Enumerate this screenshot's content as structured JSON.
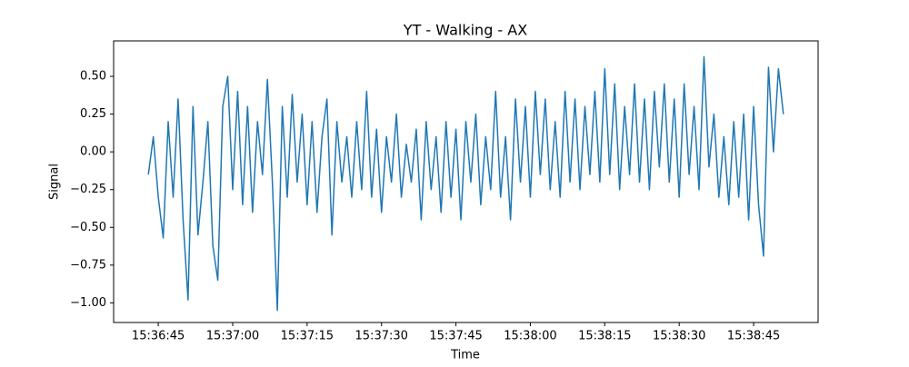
{
  "chart_data": {
    "type": "line",
    "title": "YT - Walking - AX",
    "xlabel": "Time",
    "ylabel": "Signal",
    "color": "#1f77b4",
    "x": [
      "15:36:43",
      "15:36:44",
      "15:36:45",
      "15:36:46",
      "15:36:47",
      "15:36:48",
      "15:36:49",
      "15:36:50",
      "15:36:51",
      "15:36:52",
      "15:36:53",
      "15:36:54",
      "15:36:55",
      "15:36:56",
      "15:36:57",
      "15:36:58",
      "15:36:59",
      "15:37:00",
      "15:37:01",
      "15:37:02",
      "15:37:03",
      "15:37:04",
      "15:37:05",
      "15:37:06",
      "15:37:07",
      "15:37:08",
      "15:37:09",
      "15:37:10",
      "15:37:11",
      "15:37:12",
      "15:37:13",
      "15:37:14",
      "15:37:15",
      "15:37:16",
      "15:37:17",
      "15:37:18",
      "15:37:19",
      "15:37:20",
      "15:37:21",
      "15:37:22",
      "15:37:23",
      "15:37:24",
      "15:37:25",
      "15:37:26",
      "15:37:27",
      "15:37:28",
      "15:37:29",
      "15:37:30",
      "15:37:31",
      "15:37:32",
      "15:37:33",
      "15:37:34",
      "15:37:35",
      "15:37:36",
      "15:37:37",
      "15:37:38",
      "15:37:39",
      "15:37:40",
      "15:37:41",
      "15:37:42",
      "15:37:43",
      "15:37:44",
      "15:37:45",
      "15:37:46",
      "15:37:47",
      "15:37:48",
      "15:37:49",
      "15:37:50",
      "15:37:51",
      "15:37:52",
      "15:37:53",
      "15:37:54",
      "15:37:55",
      "15:37:56",
      "15:37:57",
      "15:37:58",
      "15:37:59",
      "15:38:00",
      "15:38:01",
      "15:38:02",
      "15:38:03",
      "15:38:04",
      "15:38:05",
      "15:38:06",
      "15:38:07",
      "15:38:08",
      "15:38:09",
      "15:38:10",
      "15:38:11",
      "15:38:12",
      "15:38:13",
      "15:38:14",
      "15:38:15",
      "15:38:16",
      "15:38:17",
      "15:38:18",
      "15:38:19",
      "15:38:20",
      "15:38:21",
      "15:38:22",
      "15:38:23",
      "15:38:24",
      "15:38:25",
      "15:38:26",
      "15:38:27",
      "15:38:28",
      "15:38:29",
      "15:38:30",
      "15:38:31",
      "15:38:32",
      "15:38:33",
      "15:38:34",
      "15:38:35",
      "15:38:36",
      "15:38:37",
      "15:38:38",
      "15:38:39",
      "15:38:40",
      "15:38:41",
      "15:38:42",
      "15:38:43",
      "15:38:44",
      "15:38:45",
      "15:38:46",
      "15:38:47",
      "15:38:48",
      "15:38:49",
      "15:38:50",
      "15:38:51"
    ],
    "values": [
      -0.15,
      0.1,
      -0.3,
      -0.57,
      0.2,
      -0.3,
      0.35,
      -0.45,
      -0.98,
      0.3,
      -0.55,
      -0.2,
      0.2,
      -0.62,
      -0.85,
      0.3,
      0.5,
      -0.25,
      0.4,
      -0.35,
      0.3,
      -0.4,
      0.2,
      -0.15,
      0.48,
      -0.2,
      -1.05,
      0.3,
      -0.3,
      0.38,
      -0.2,
      0.25,
      -0.35,
      0.2,
      -0.4,
      0.1,
      0.35,
      -0.55,
      0.2,
      -0.2,
      0.1,
      -0.3,
      0.2,
      -0.25,
      0.4,
      -0.3,
      0.15,
      -0.4,
      0.1,
      -0.2,
      0.25,
      -0.3,
      0.05,
      -0.2,
      0.15,
      -0.45,
      0.2,
      -0.25,
      0.1,
      -0.4,
      0.2,
      -0.3,
      0.15,
      -0.45,
      0.2,
      -0.2,
      0.25,
      -0.35,
      0.1,
      -0.25,
      0.4,
      -0.3,
      0.1,
      -0.45,
      0.35,
      -0.2,
      0.3,
      -0.3,
      0.4,
      -0.15,
      0.35,
      -0.25,
      0.2,
      -0.3,
      0.4,
      -0.2,
      0.35,
      -0.25,
      0.3,
      -0.15,
      0.4,
      -0.2,
      0.55,
      -0.15,
      0.45,
      -0.25,
      0.3,
      -0.15,
      0.45,
      -0.2,
      0.35,
      -0.25,
      0.4,
      -0.1,
      0.45,
      -0.2,
      0.35,
      -0.3,
      0.45,
      -0.15,
      0.3,
      -0.25,
      0.63,
      -0.1,
      0.25,
      -0.3,
      0.1,
      -0.35,
      0.2,
      -0.3,
      0.25,
      -0.45,
      0.3,
      -0.35,
      -0.69,
      0.56,
      0.0,
      0.55,
      0.25
    ],
    "xlim": [
      "15:36:36",
      "15:38:58"
    ],
    "xticks": [
      "15:36:45",
      "15:37:00",
      "15:37:15",
      "15:37:30",
      "15:37:45",
      "15:38:00",
      "15:38:15",
      "15:38:30",
      "15:38:45"
    ],
    "ylim": [
      -1.13,
      0.735
    ],
    "yticks": [
      {
        "value": -1.0,
        "label": "−1.00"
      },
      {
        "value": -0.75,
        "label": "−0.75"
      },
      {
        "value": -0.5,
        "label": "−0.50"
      },
      {
        "value": -0.25,
        "label": "−0.25"
      },
      {
        "value": 0,
        "label": "0.00"
      },
      {
        "value": 0.25,
        "label": "0.25"
      },
      {
        "value": 0.5,
        "label": "0.50"
      }
    ]
  }
}
